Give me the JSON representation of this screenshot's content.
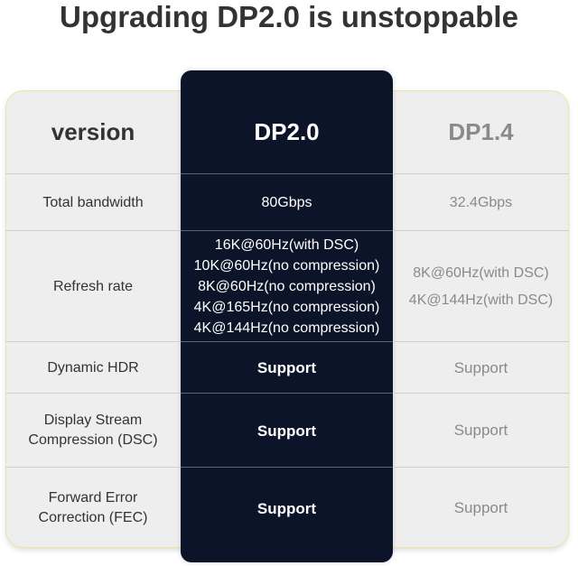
{
  "title": "Upgrading DP2.0 is unstoppable",
  "header": {
    "label": "version",
    "dp20": "DP2.0",
    "dp14": "DP1.4"
  },
  "rows": [
    {
      "feature": [
        "Total bandwidth"
      ],
      "dp20": [
        "80Gbps"
      ],
      "dp14": [
        "32.4Gbps"
      ]
    },
    {
      "feature": [
        "Refresh rate"
      ],
      "dp20": [
        "16K@60Hz(with DSC)",
        "10K@60Hz(no compression)",
        "8K@60Hz(no compression)",
        "4K@165Hz(no compression)",
        "4K@144Hz(no compression)"
      ],
      "dp14": [
        "8K@60Hz(with DSC)",
        "4K@144Hz(with DSC)"
      ]
    },
    {
      "feature": [
        "Dynamic HDR"
      ],
      "dp20": [
        "Support"
      ],
      "dp14": [
        "Support"
      ]
    },
    {
      "feature": [
        "Display Stream",
        "Compression (DSC)"
      ],
      "dp20": [
        "Support"
      ],
      "dp14": [
        "Support"
      ]
    },
    {
      "feature": [
        "Forward Error",
        "Correction (FEC)"
      ],
      "dp20": [
        "Support"
      ],
      "dp14": [
        "Support"
      ]
    }
  ],
  "colors": {
    "dark_column": "#0b1428",
    "table_bg": "#eeeeee",
    "border_accent": "#efe3a8"
  }
}
